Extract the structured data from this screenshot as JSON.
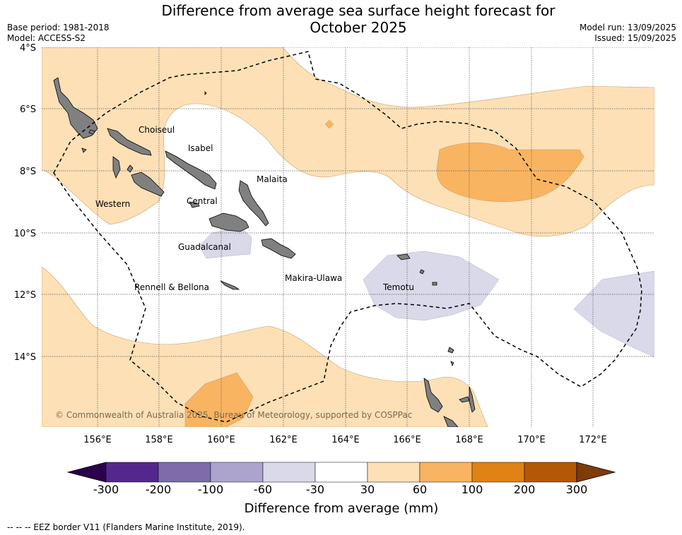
{
  "title_line1": "Difference from average sea surface height forecast for",
  "title_line2": "October 2025",
  "meta_left": {
    "base_period": "Base period: 1981-2018",
    "model": "Model: ACCESS-S2"
  },
  "meta_right": {
    "model_run": "Model run: 13/09/2025",
    "issued": "Issued: 15/09/2025"
  },
  "lat_labels": [
    "4°S",
    "6°S",
    "8°S",
    "10°S",
    "12°S",
    "14°S"
  ],
  "lon_labels": [
    "156°E",
    "158°E",
    "160°E",
    "162°E",
    "164°E",
    "166°E",
    "168°E",
    "170°E",
    "172°E"
  ],
  "provinces": [
    {
      "name": "Choiseul"
    },
    {
      "name": "Isabel"
    },
    {
      "name": "Malaita"
    },
    {
      "name": "Western"
    },
    {
      "name": "Central"
    },
    {
      "name": "Guadalcanal"
    },
    {
      "name": "Makira-Ulawa"
    },
    {
      "name": "Temotu"
    },
    {
      "name": "Rennell & Bellona"
    }
  ],
  "copyright": "© Commonwealth of Australia 2025, Bureau of Meteorology, supported by COSPPac",
  "colorbar": {
    "label": "Difference from average (mm)",
    "ticks": [
      "-300",
      "-200",
      "-100",
      "-60",
      "-30",
      "30",
      "60",
      "100",
      "200",
      "300"
    ],
    "colors": [
      "#54278f",
      "#7d6ca9",
      "#aca4cf",
      "#d9d9ea",
      "#ffffff",
      "#fde0b6",
      "#f9b461",
      "#e08214",
      "#b35806"
    ],
    "extend_low": "#2d004b",
    "extend_high": "#7f3b08"
  },
  "legend_footnote": "--  --  -- EEZ border V11 (Flanders Marine Institute, 2019).",
  "colors": {
    "land": "#808080",
    "anomaly_30_60": "#fde0b6",
    "anomaly_60_100": "#f9b461",
    "anomaly_neg30_neg60": "#d9d9ea"
  }
}
